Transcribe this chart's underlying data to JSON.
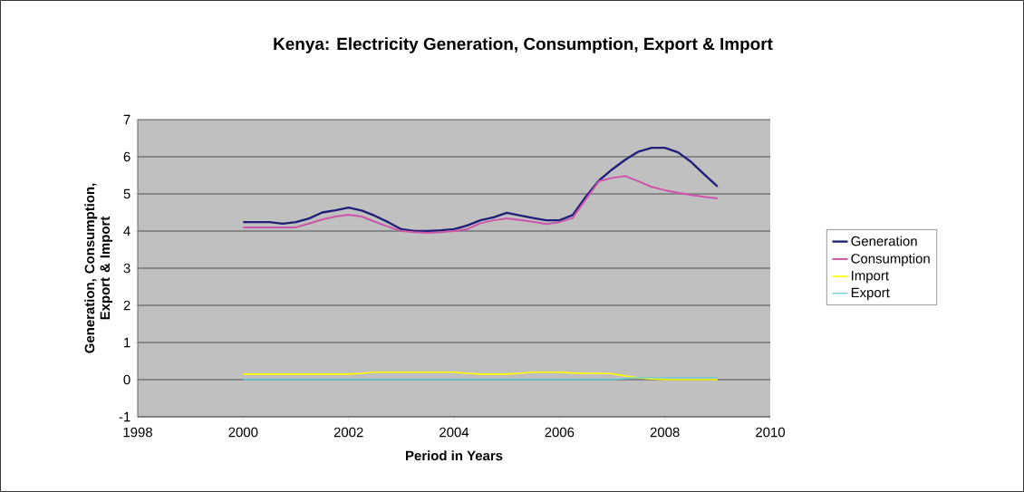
{
  "chart_data": {
    "type": "line",
    "title": "Kenya: Electricity Generation, Consumption, Export & Import",
    "xlabel": "Period in Years",
    "ylabel": "Generation, Consumption, Export & Import",
    "xlim": [
      1998,
      2010
    ],
    "xticks": [
      1998,
      2000,
      2002,
      2004,
      2006,
      2008,
      2010
    ],
    "ylim": [
      -1,
      7
    ],
    "yticks": [
      -1,
      0,
      1,
      2,
      3,
      4,
      5,
      6,
      7
    ],
    "grid": "y",
    "legend": "right",
    "x": [
      2000,
      2000.25,
      2000.5,
      2000.75,
      2001,
      2001.25,
      2001.5,
      2001.75,
      2002,
      2002.25,
      2002.5,
      2002.75,
      2003,
      2003.25,
      2003.5,
      2003.75,
      2004,
      2004.25,
      2004.5,
      2004.75,
      2005,
      2005.25,
      2005.5,
      2005.75,
      2006,
      2006.25,
      2006.5,
      2006.75,
      2007,
      2007.25,
      2007.5,
      2007.75,
      2008,
      2008.25,
      2008.5,
      2008.75,
      2009
    ],
    "series": [
      {
        "name": "Generation",
        "color": "#1f1f7a",
        "values": [
          4.24,
          4.24,
          4.24,
          4.2,
          4.24,
          4.34,
          4.5,
          4.56,
          4.63,
          4.55,
          4.41,
          4.24,
          4.05,
          4.0,
          4.0,
          4.02,
          4.05,
          4.15,
          4.29,
          4.37,
          4.49,
          4.42,
          4.35,
          4.29,
          4.29,
          4.43,
          4.92,
          5.36,
          5.66,
          5.92,
          6.14,
          6.24,
          6.24,
          6.12,
          5.86,
          5.52,
          5.2
        ]
      },
      {
        "name": "Consumption",
        "color": "#cc55aa",
        "values": [
          4.1,
          4.1,
          4.1,
          4.1,
          4.1,
          4.2,
          4.31,
          4.39,
          4.44,
          4.39,
          4.25,
          4.12,
          4.0,
          3.97,
          3.95,
          3.97,
          4.0,
          4.05,
          4.21,
          4.29,
          4.34,
          4.3,
          4.25,
          4.19,
          4.24,
          4.35,
          4.85,
          5.34,
          5.43,
          5.48,
          5.34,
          5.19,
          5.1,
          5.03,
          4.97,
          4.92,
          4.88
        ]
      },
      {
        "name": "Import",
        "color": "#ffff00",
        "values": [
          0.15,
          0.15,
          0.15,
          0.15,
          0.15,
          0.15,
          0.15,
          0.15,
          0.15,
          0.17,
          0.2,
          0.2,
          0.2,
          0.2,
          0.2,
          0.2,
          0.2,
          0.17,
          0.15,
          0.15,
          0.15,
          0.17,
          0.2,
          0.2,
          0.2,
          0.18,
          0.17,
          0.17,
          0.16,
          0.1,
          0.05,
          0.02,
          0.0,
          0.0,
          0.0,
          0.0,
          0.0
        ]
      },
      {
        "name": "Export",
        "color": "#66ccdd",
        "values": [
          0.0,
          0.0,
          0.0,
          0.0,
          0.0,
          0.0,
          0.0,
          0.0,
          0.0,
          0.0,
          0.0,
          0.0,
          0.0,
          0.0,
          0.0,
          0.0,
          0.0,
          0.0,
          0.0,
          0.0,
          0.0,
          0.0,
          0.0,
          0.0,
          0.0,
          0.0,
          0.0,
          0.0,
          0.0,
          0.03,
          0.05,
          0.05,
          0.05,
          0.05,
          0.05,
          0.05,
          0.05
        ]
      }
    ]
  }
}
